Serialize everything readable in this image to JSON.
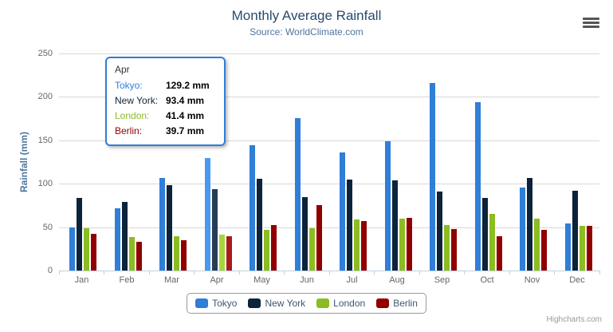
{
  "chart_data": {
    "type": "bar",
    "title": "Monthly Average Rainfall",
    "subtitle": "Source: WorldClimate.com",
    "ylabel": "Rainfall (mm)",
    "xlabel": "",
    "ylim": [
      0,
      250
    ],
    "ytick_step": 50,
    "grid": true,
    "legend_position": "bottom-center",
    "categories": [
      "Jan",
      "Feb",
      "Mar",
      "Apr",
      "May",
      "Jun",
      "Jul",
      "Aug",
      "Sep",
      "Oct",
      "Nov",
      "Dec"
    ],
    "series": [
      {
        "name": "Tokyo",
        "color": "#2f7ed8",
        "values": [
          49.9,
          71.5,
          106.4,
          129.2,
          144.0,
          176.0,
          135.6,
          148.5,
          216.4,
          194.1,
          95.6,
          54.4
        ]
      },
      {
        "name": "New York",
        "color": "#0d233a",
        "values": [
          83.6,
          78.8,
          98.5,
          93.4,
          106.0,
          84.5,
          105.0,
          104.3,
          91.2,
          83.5,
          106.6,
          92.3
        ]
      },
      {
        "name": "London",
        "color": "#8bbc21",
        "values": [
          48.9,
          38.8,
          39.3,
          41.4,
          47.0,
          48.3,
          59.0,
          59.6,
          52.4,
          65.2,
          59.3,
          51.2
        ]
      },
      {
        "name": "Berlin",
        "color": "#910000",
        "values": [
          42.4,
          33.2,
          34.5,
          39.7,
          52.6,
          75.5,
          57.4,
          60.4,
          47.6,
          39.1,
          46.8,
          51.1
        ]
      }
    ]
  },
  "tooltip": {
    "category": "Apr",
    "rows": [
      {
        "label": "Tokyo:",
        "value": "129.2 mm",
        "color": "#2f7ed8"
      },
      {
        "label": "New York:",
        "value": "93.4 mm",
        "color": "#0d233a"
      },
      {
        "label": "London:",
        "value": "41.4 mm",
        "color": "#8bbc21"
      },
      {
        "label": "Berlin:",
        "value": "39.7 mm",
        "color": "#910000"
      }
    ]
  },
  "controls": {
    "menu_icon": "hamburger-icon"
  },
  "credits": {
    "label": "Highcharts.com"
  },
  "theme_colors": {
    "title": "#274b6d",
    "subtitle": "#4d759e",
    "axis_label": "#666666",
    "gridline": "#d8d8d8",
    "axis_line": "#c0d0e0",
    "legend_text": "#3e576f",
    "tooltip_border": "#2f7ed8",
    "credits_text": "#999999"
  }
}
